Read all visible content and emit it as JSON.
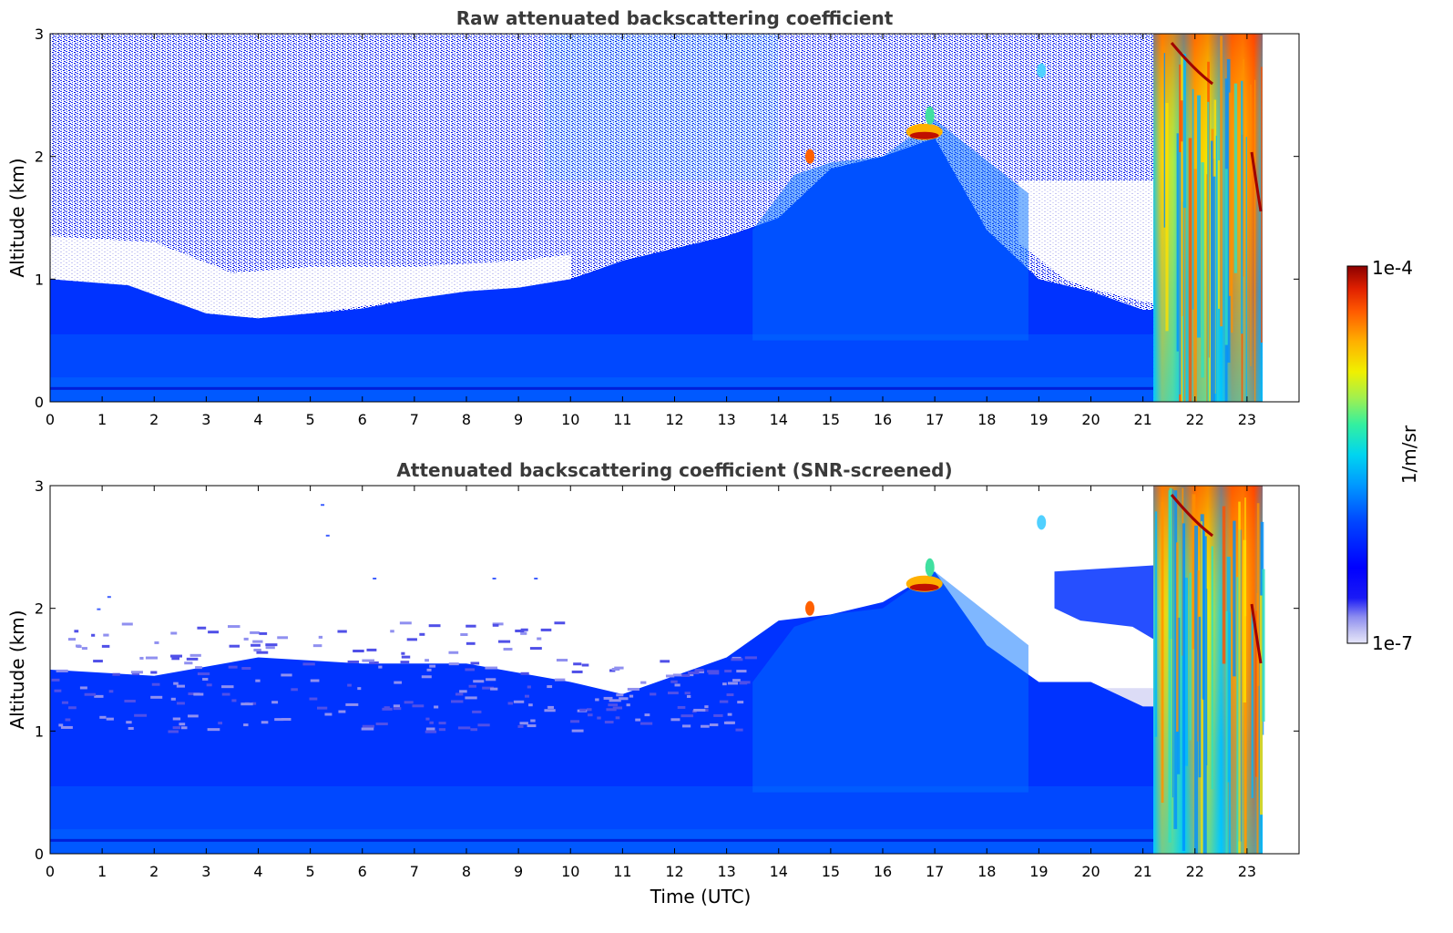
{
  "chart_data": [
    {
      "type": "heatmap",
      "title": "Raw attenuated backscattering coefficient",
      "xlabel": "",
      "ylabel": "Altitude (km)",
      "xlim": [
        0,
        24
      ],
      "ylim": [
        0,
        3
      ],
      "x_ticks": [
        "0",
        "1",
        "2",
        "3",
        "4",
        "5",
        "6",
        "7",
        "8",
        "9",
        "10",
        "11",
        "12",
        "13",
        "14",
        "15",
        "16",
        "17",
        "18",
        "19",
        "20",
        "21",
        "22",
        "23"
      ],
      "y_ticks": [
        "0",
        "1",
        "2",
        "3"
      ],
      "data_end_time": 23.3,
      "boundary_layer_top_km": [
        [
          0,
          1.0
        ],
        [
          1.5,
          0.95
        ],
        [
          3,
          0.72
        ],
        [
          4,
          0.68
        ],
        [
          5,
          0.72
        ],
        [
          6,
          0.76
        ],
        [
          7,
          0.84
        ],
        [
          8,
          0.9
        ],
        [
          9,
          0.93
        ],
        [
          10,
          1.0
        ],
        [
          11,
          1.15
        ],
        [
          12,
          1.25
        ],
        [
          13,
          1.35
        ],
        [
          14,
          1.5
        ],
        [
          15,
          1.9
        ],
        [
          16,
          2.0
        ],
        [
          17,
          2.15
        ],
        [
          18,
          1.4
        ],
        [
          19,
          1.0
        ],
        [
          20,
          0.9
        ],
        [
          21,
          0.75
        ]
      ],
      "cloud_features": [
        {
          "time": 14.6,
          "altitude_km": 2.0
        },
        {
          "time": 16.8,
          "altitude_km": 2.2
        },
        {
          "time": 19.05,
          "altitude_km": 2.7
        }
      ],
      "precipitation_or_fog_period": {
        "start": 21.2,
        "end": 23.3,
        "altitude_range_km": [
          0,
          3
        ]
      },
      "grid": false
    },
    {
      "type": "heatmap",
      "title": "Attenuated backscattering coefficient (SNR-screened)",
      "xlabel": "Time (UTC)",
      "ylabel": "Altitude (km)",
      "xlim": [
        0,
        24
      ],
      "ylim": [
        0,
        3
      ],
      "x_ticks": [
        "0",
        "1",
        "2",
        "3",
        "4",
        "5",
        "6",
        "7",
        "8",
        "9",
        "10",
        "11",
        "12",
        "13",
        "14",
        "15",
        "16",
        "17",
        "18",
        "19",
        "20",
        "21",
        "22",
        "23"
      ],
      "y_ticks": [
        "0",
        "1",
        "2",
        "3"
      ],
      "data_end_time": 23.3,
      "signal_top_km": [
        [
          0,
          1.5
        ],
        [
          2,
          1.45
        ],
        [
          4,
          1.6
        ],
        [
          6,
          1.55
        ],
        [
          8,
          1.55
        ],
        [
          10,
          1.4
        ],
        [
          11,
          1.3
        ],
        [
          12,
          1.45
        ],
        [
          13,
          1.6
        ],
        [
          14,
          1.9
        ],
        [
          15,
          1.95
        ],
        [
          16,
          2.05
        ],
        [
          17,
          2.3
        ],
        [
          18,
          1.7
        ],
        [
          19,
          1.4
        ],
        [
          20,
          1.4
        ],
        [
          21,
          1.2
        ]
      ],
      "cloud_features": [
        {
          "time": 14.6,
          "altitude_km": 2.0
        },
        {
          "time": 16.8,
          "altitude_km": 2.2
        },
        {
          "time": 19.05,
          "altitude_km": 2.7
        }
      ],
      "precipitation_or_fog_period": {
        "start": 21.2,
        "end": 23.3,
        "altitude_range_km": [
          0,
          3
        ]
      },
      "grid": false
    }
  ],
  "colorbar": {
    "min_label": "1e-7",
    "max_label": "1e-4",
    "label": "1/m/sr",
    "scale": "log",
    "colors": [
      "#e6e6fa",
      "#c4c4f2",
      "#8c8cf0",
      "#1a1af5",
      "#0000ff",
      "#0044ff",
      "#0099ff",
      "#00d5f0",
      "#33f0a0",
      "#a0f050",
      "#f0f000",
      "#ffb000",
      "#ff5a00",
      "#e02000",
      "#8b0000"
    ]
  }
}
